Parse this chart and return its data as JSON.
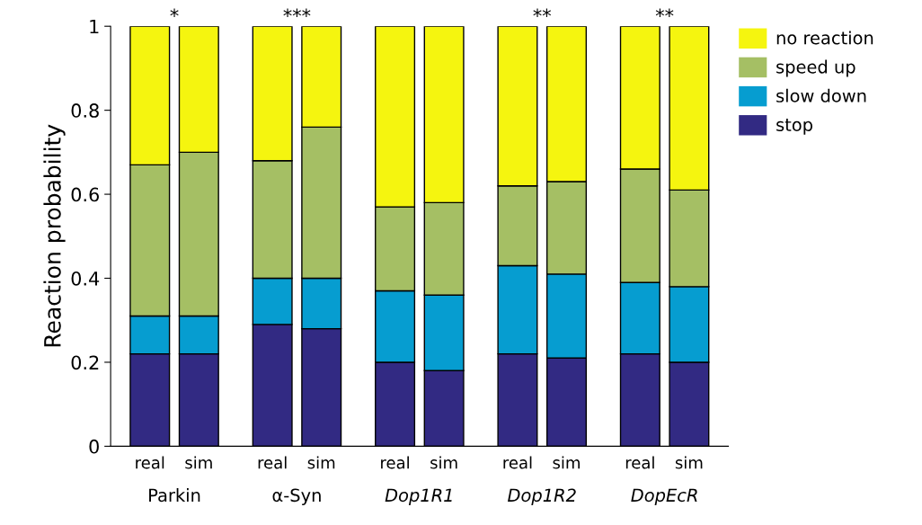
{
  "chart_data": {
    "type": "bar",
    "stacked": true,
    "ylabel": "Reaction probability",
    "categories": [
      "real",
      "sim",
      "real",
      "sim",
      "real",
      "sim",
      "real",
      "sim",
      "real",
      "sim"
    ],
    "series": [
      {
        "name": "stop",
        "color": "#322a83",
        "values": [
          0.22,
          0.22,
          0.29,
          0.28,
          0.2,
          0.18,
          0.22,
          0.21,
          0.22,
          0.2
        ]
      },
      {
        "name": "slow down",
        "color": "#069dd0",
        "values": [
          0.09,
          0.09,
          0.11,
          0.12,
          0.17,
          0.18,
          0.21,
          0.2,
          0.17,
          0.18
        ]
      },
      {
        "name": "speed up",
        "color": "#a5bf64",
        "values": [
          0.36,
          0.39,
          0.28,
          0.36,
          0.2,
          0.22,
          0.19,
          0.22,
          0.27,
          0.23
        ]
      },
      {
        "name": "no reaction",
        "color": "#f5f50f",
        "values": [
          0.33,
          0.3,
          0.32,
          0.24,
          0.43,
          0.42,
          0.38,
          0.37,
          0.34,
          0.39
        ]
      }
    ],
    "ylim": [
      0,
      1
    ],
    "yticks": [
      0,
      0.2,
      0.4,
      0.6,
      0.8,
      1
    ],
    "grid": false,
    "legend": "top right",
    "annotations": [
      "Parkin",
      "α-Syn",
      "Dop1R1",
      "Dop1R2",
      "DopEcR",
      "*",
      "***",
      "**",
      "**"
    ]
  }
}
